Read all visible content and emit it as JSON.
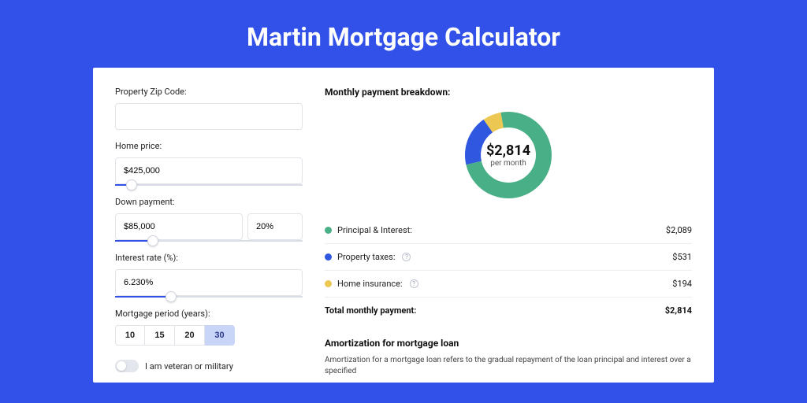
{
  "page": {
    "title": "Martin Mortgage Calculator",
    "background_color": "#3151e8",
    "card_background": "#ffffff"
  },
  "form": {
    "zip_label": "Property Zip Code:",
    "zip_value": "",
    "home_price_label": "Home price:",
    "home_price_value": "$425,000",
    "home_price_slider_pct": 9,
    "down_payment_label": "Down payment:",
    "down_payment_value": "$85,000",
    "down_payment_pct_value": "20%",
    "down_payment_slider_pct": 20,
    "interest_label": "Interest rate (%):",
    "interest_value": "6.230%",
    "interest_slider_pct": 30,
    "period_label": "Mortgage period (years):",
    "period_options": [
      "10",
      "15",
      "20",
      "30"
    ],
    "period_selected": "30",
    "veteran_label": "I am veteran or military",
    "veteran_on": false
  },
  "breakdown": {
    "title": "Monthly payment breakdown:",
    "donut": {
      "center_value": "$2,814",
      "center_sub": "per month",
      "slices": [
        {
          "label": "Principal & Interest",
          "color": "#49af87",
          "value": 2089,
          "pct": 74.2
        },
        {
          "label": "Property taxes",
          "color": "#2f57e0",
          "value": 531,
          "pct": 18.9
        },
        {
          "label": "Home insurance",
          "color": "#ecc853",
          "value": 194,
          "pct": 6.9
        }
      ],
      "thickness": 20,
      "diameter": 130
    },
    "rows": [
      {
        "dot_color": "#49af87",
        "label": "Principal & Interest:",
        "info": false,
        "value": "$2,089"
      },
      {
        "dot_color": "#2f57e0",
        "label": "Property taxes:",
        "info": true,
        "value": "$531"
      },
      {
        "dot_color": "#ecc853",
        "label": "Home insurance:",
        "info": true,
        "value": "$194"
      }
    ],
    "total_label": "Total monthly payment:",
    "total_value": "$2,814"
  },
  "amortization": {
    "title": "Amortization for mortgage loan",
    "text": "Amortization for a mortgage loan refers to the gradual repayment of the loan principal and interest over a specified"
  },
  "colors": {
    "accent": "#3151e8",
    "input_border": "#e1e3e8",
    "slider_track": "#d9dde6",
    "divider": "#eceef3"
  }
}
